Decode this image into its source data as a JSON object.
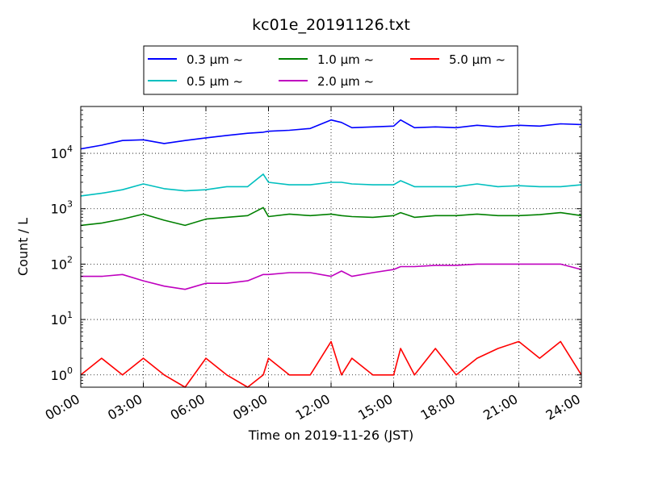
{
  "chart_data": {
    "type": "line",
    "title": "kc01e_20191126.txt",
    "xlabel": "Time on 2019-11-26 (JST)",
    "ylabel": "Count / L",
    "xlim": [
      "00:00",
      "24:00"
    ],
    "ylim": [
      0.6,
      70000
    ],
    "yscale": "log",
    "grid": true,
    "legend": "upper center",
    "x_ticks": [
      "00:00",
      "03:00",
      "06:00",
      "09:00",
      "12:00",
      "15:00",
      "18:00",
      "21:00",
      "24:00"
    ],
    "y_ticks": [
      {
        "value": 1,
        "base": "10",
        "exp": "0"
      },
      {
        "value": 10,
        "base": "10",
        "exp": "1"
      },
      {
        "value": 100,
        "base": "10",
        "exp": "2"
      },
      {
        "value": 1000,
        "base": "10",
        "exp": "3"
      },
      {
        "value": 10000,
        "base": "10",
        "exp": "4"
      }
    ],
    "x": [
      "00:00",
      "01:00",
      "02:00",
      "03:00",
      "04:00",
      "05:00",
      "06:00",
      "07:00",
      "08:00",
      "08:45",
      "09:00",
      "10:00",
      "11:00",
      "12:00",
      "12:30",
      "13:00",
      "14:00",
      "15:00",
      "15:20",
      "16:00",
      "17:00",
      "18:00",
      "19:00",
      "20:00",
      "21:00",
      "22:00",
      "23:00",
      "24:00"
    ],
    "series": [
      {
        "name": "0.3 µm ~",
        "color": "#0000ff",
        "values": [
          12000,
          14000,
          17000,
          17500,
          15000,
          17000,
          19000,
          21000,
          23000,
          24000,
          25000,
          26000,
          28000,
          40000,
          36000,
          29000,
          30000,
          31000,
          40000,
          29000,
          30000,
          29000,
          32000,
          30000,
          32000,
          31000,
          34000,
          33000
        ]
      },
      {
        "name": "0.5 µm ~",
        "color": "#00bfbf",
        "values": [
          1700,
          1900,
          2200,
          2800,
          2300,
          2100,
          2200,
          2500,
          2500,
          4200,
          3000,
          2700,
          2700,
          3000,
          3000,
          2800,
          2700,
          2700,
          3200,
          2500,
          2500,
          2500,
          2800,
          2500,
          2600,
          2500,
          2500,
          2700
        ]
      },
      {
        "name": "1.0 µm ~",
        "color": "#008000",
        "values": [
          500,
          550,
          650,
          800,
          620,
          500,
          650,
          700,
          750,
          1050,
          720,
          800,
          750,
          800,
          750,
          720,
          700,
          750,
          850,
          700,
          750,
          750,
          800,
          750,
          750,
          780,
          850,
          750
        ]
      },
      {
        "name": "2.0 µm ~",
        "color": "#bf00bf",
        "values": [
          60,
          60,
          65,
          50,
          40,
          35,
          45,
          45,
          50,
          65,
          65,
          70,
          70,
          60,
          75,
          60,
          70,
          80,
          90,
          90,
          95,
          95,
          100,
          100,
          100,
          100,
          100,
          80
        ]
      },
      {
        "name": "5.0 µm ~",
        "color": "#ff0000",
        "values": [
          1,
          2,
          1,
          2,
          1,
          0,
          2,
          1,
          0,
          1,
          2,
          1,
          1,
          4,
          1,
          2,
          1,
          1,
          3,
          1,
          3,
          1,
          2,
          3,
          4,
          2,
          4,
          1
        ]
      }
    ]
  }
}
